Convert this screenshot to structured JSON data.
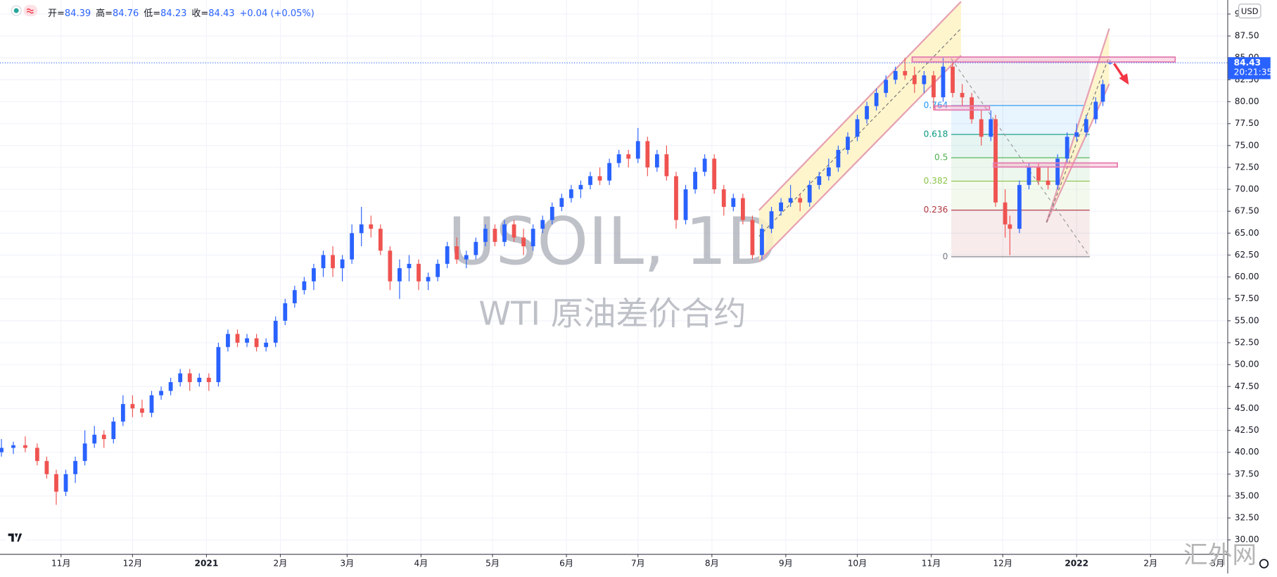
{
  "chart_data": {
    "type": "candlestick",
    "title": "USOIL, 1D",
    "subtitle": "WTI 原油差价合约",
    "legend_labels": [
      "开=",
      "高=",
      "低=",
      "收="
    ],
    "change_label": "+0.04 (+0.05%)",
    "currency": "USD",
    "countdown": "20:21:35",
    "x": [
      -25,
      -20,
      -15,
      -10,
      -6,
      -2,
      2,
      6,
      10,
      14,
      18,
      22,
      26,
      30,
      34,
      38,
      42,
      46,
      50,
      54,
      58,
      62,
      66,
      70,
      74,
      78,
      82,
      86,
      90,
      94,
      98,
      102,
      106,
      110,
      114,
      118,
      122,
      126,
      130,
      134,
      138,
      142,
      146,
      150,
      154,
      158,
      162,
      166,
      170,
      174,
      178,
      182,
      186,
      190,
      194,
      198,
      202,
      206,
      210,
      214,
      218,
      222,
      226,
      230,
      234,
      238,
      242,
      246,
      250,
      254,
      258,
      262,
      266,
      270,
      274,
      278,
      282,
      286,
      290,
      294,
      298,
      302,
      306,
      310,
      314,
      318,
      322,
      326,
      330,
      334,
      338,
      342,
      346,
      350,
      354,
      358,
      362,
      366,
      370,
      374,
      378,
      382,
      386,
      390,
      392,
      396,
      398,
      402,
      406,
      410,
      414,
      418,
      422,
      426,
      430,
      434,
      437,
      440
    ],
    "open": [
      40.0,
      40.5,
      40.8,
      40.5,
      39.0,
      37.5,
      35.5,
      37.5,
      39.0,
      41.0,
      42.0,
      41.5,
      43.5,
      45.5,
      45.0,
      44.5,
      46.5,
      47.0,
      48.0,
      49.0,
      48.0,
      48.5,
      48.0,
      52.0,
      53.5,
      52.5,
      53.0,
      52.0,
      52.5,
      55.0,
      57.0,
      58.5,
      59.5,
      61.0,
      62.5,
      61.0,
      62.0,
      65.0,
      66.0,
      65.5,
      63.0,
      59.5,
      61.0,
      61.5,
      59.5,
      60.0,
      61.5,
      63.5,
      62.0,
      62.5,
      64.0,
      65.5,
      64.0,
      66.0,
      64.5,
      63.5,
      65.5,
      66.5,
      68.0,
      69.0,
      70.0,
      70.5,
      71.5,
      71.0,
      73.0,
      74.0,
      73.5,
      75.5,
      72.5,
      74.0,
      71.5,
      66.5,
      70.0,
      72.0,
      73.5,
      70.0,
      68.0,
      69.0,
      66.5,
      62.5,
      65.5,
      67.5,
      68.5,
      69.0,
      68.5,
      70.5,
      71.5,
      72.5,
      74.5,
      76.0,
      78.0,
      79.5,
      81.0,
      82.5,
      83.5,
      83.0,
      82.0,
      83.0,
      80.5,
      84.0,
      81.0,
      80.5,
      78.0,
      76.0,
      78.0,
      68.5,
      66.0,
      65.5,
      70.5,
      72.5,
      71.0,
      70.5,
      73.5,
      76.0,
      76.5,
      78.0,
      80.0,
      84.39
    ],
    "high": [
      41.5,
      41.2,
      41.8,
      41.0,
      39.5,
      38.0,
      38.0,
      39.5,
      42.5,
      43.0,
      42.5,
      44.0,
      46.5,
      46.5,
      46.0,
      47.0,
      47.5,
      48.5,
      49.5,
      49.5,
      49.0,
      49.0,
      52.5,
      54.0,
      54.0,
      53.5,
      53.5,
      53.0,
      55.5,
      57.5,
      59.0,
      60.0,
      61.5,
      63.0,
      63.5,
      62.5,
      66.0,
      68.0,
      67.0,
      66.0,
      63.5,
      62.0,
      62.5,
      62.0,
      60.5,
      62.0,
      64.0,
      64.5,
      63.0,
      64.5,
      66.0,
      66.0,
      66.5,
      66.5,
      65.5,
      66.0,
      67.0,
      68.5,
      69.5,
      70.5,
      71.0,
      72.0,
      72.5,
      73.5,
      74.5,
      74.5,
      77.0,
      76.0,
      74.5,
      75.0,
      72.0,
      70.5,
      72.5,
      74.0,
      74.0,
      70.5,
      69.5,
      69.5,
      67.0,
      66.0,
      68.0,
      69.0,
      70.5,
      69.5,
      71.0,
      72.0,
      73.5,
      75.0,
      76.5,
      78.5,
      80.0,
      81.5,
      83.0,
      84.0,
      85.0,
      84.0,
      83.5,
      83.5,
      85.0,
      84.5,
      82.0,
      81.0,
      79.0,
      79.0,
      78.5,
      70.0,
      67.0,
      71.0,
      73.0,
      73.0,
      72.5,
      74.0,
      76.5,
      77.5,
      78.5,
      80.5,
      82.5,
      84.76
    ],
    "low": [
      39.5,
      39.8,
      40.0,
      38.5,
      37.0,
      34.0,
      35.0,
      36.5,
      38.5,
      40.5,
      40.5,
      41.0,
      43.0,
      44.0,
      44.0,
      44.0,
      46.0,
      46.5,
      47.5,
      47.0,
      47.5,
      47.0,
      47.5,
      51.5,
      52.0,
      52.0,
      51.5,
      51.5,
      52.0,
      54.5,
      56.5,
      58.0,
      58.5,
      60.0,
      60.0,
      59.5,
      61.5,
      63.5,
      64.5,
      62.5,
      58.5,
      57.5,
      59.5,
      58.5,
      58.5,
      59.5,
      61.0,
      61.5,
      61.0,
      62.0,
      63.5,
      63.5,
      63.5,
      64.0,
      62.5,
      63.0,
      65.0,
      66.0,
      67.5,
      68.5,
      69.0,
      70.0,
      70.5,
      70.5,
      72.5,
      72.5,
      73.0,
      71.5,
      72.0,
      71.0,
      65.5,
      66.0,
      69.5,
      71.5,
      69.5,
      67.0,
      67.5,
      66.0,
      62.0,
      62.0,
      65.0,
      67.0,
      68.0,
      67.5,
      68.0,
      70.0,
      71.0,
      72.0,
      74.0,
      75.5,
      77.5,
      79.0,
      80.5,
      82.0,
      82.5,
      81.0,
      81.0,
      79.0,
      80.0,
      80.5,
      79.5,
      77.5,
      75.0,
      75.5,
      68.0,
      64.5,
      62.5,
      65.0,
      70.0,
      70.5,
      70.0,
      70.0,
      73.0,
      75.5,
      76.0,
      77.5,
      79.5,
      84.23
    ],
    "close": [
      40.5,
      40.8,
      40.5,
      39.0,
      37.5,
      35.5,
      37.5,
      39.0,
      41.0,
      42.0,
      41.5,
      43.5,
      45.5,
      45.0,
      44.5,
      46.5,
      47.0,
      48.0,
      49.0,
      48.0,
      48.5,
      48.0,
      52.0,
      53.5,
      52.5,
      53.0,
      52.0,
      52.5,
      55.0,
      57.0,
      58.5,
      59.5,
      61.0,
      62.5,
      61.0,
      62.0,
      65.0,
      66.0,
      65.5,
      63.0,
      59.5,
      61.0,
      61.5,
      59.5,
      60.0,
      61.5,
      63.5,
      62.0,
      62.5,
      64.0,
      65.5,
      64.0,
      66.0,
      64.5,
      63.5,
      65.5,
      66.5,
      68.0,
      69.0,
      70.0,
      70.5,
      71.5,
      71.0,
      73.0,
      74.0,
      73.5,
      75.5,
      72.5,
      74.0,
      71.5,
      66.5,
      70.0,
      72.0,
      73.5,
      70.0,
      68.0,
      69.0,
      66.5,
      62.5,
      65.5,
      67.5,
      68.5,
      69.0,
      68.5,
      70.5,
      71.5,
      72.5,
      74.5,
      76.0,
      78.0,
      79.5,
      81.0,
      82.5,
      83.5,
      83.0,
      82.0,
      83.0,
      80.5,
      84.0,
      81.0,
      80.5,
      78.0,
      76.0,
      78.0,
      68.5,
      66.0,
      65.5,
      70.5,
      72.5,
      71.0,
      70.5,
      73.5,
      76.0,
      76.5,
      78.0,
      80.0,
      82.0,
      84.43
    ],
    "up_color": "#2962ff",
    "down_color": "#ef5350",
    "xlim": [
      -25.6,
      489.2
    ],
    "xticks": [
      {
        "value": 0,
        "label": "11月"
      },
      {
        "value": 30,
        "label": "12月"
      },
      {
        "value": 61,
        "label": "2021"
      },
      {
        "value": 92,
        "label": "2月"
      },
      {
        "value": 120,
        "label": "3月"
      },
      {
        "value": 151,
        "label": "4月"
      },
      {
        "value": 181,
        "label": "5月"
      },
      {
        "value": 212,
        "label": "6月"
      },
      {
        "value": 242,
        "label": "7月"
      },
      {
        "value": 273,
        "label": "8月"
      },
      {
        "value": 304,
        "label": "9月"
      },
      {
        "value": 334,
        "label": "10月"
      },
      {
        "value": 365,
        "label": "11月"
      },
      {
        "value": 395,
        "label": "12月"
      },
      {
        "value": 426,
        "label": "2022"
      },
      {
        "value": 457,
        "label": "2月"
      },
      {
        "value": 485,
        "label": "3月"
      }
    ],
    "ylim": [
      28.4,
      91.6
    ],
    "yticks": [
      {
        "value": 30,
        "label": "30.00"
      },
      {
        "value": 32.5,
        "label": "32.50"
      },
      {
        "value": 35,
        "label": "35.00"
      },
      {
        "value": 37.5,
        "label": "37.50"
      },
      {
        "value": 40,
        "label": "40.00"
      },
      {
        "value": 42.5,
        "label": "42.50"
      },
      {
        "value": 45,
        "label": "45.00"
      },
      {
        "value": 47.5,
        "label": "47.50"
      },
      {
        "value": 50,
        "label": "50.00"
      },
      {
        "value": 52.5,
        "label": "52.50"
      },
      {
        "value": 55,
        "label": "55.00"
      },
      {
        "value": 57.5,
        "label": "57.50"
      },
      {
        "value": 60,
        "label": "60.00"
      },
      {
        "value": 62.5,
        "label": "62.50"
      },
      {
        "value": 65,
        "label": "65.00"
      },
      {
        "value": 67.5,
        "label": "67.50"
      },
      {
        "value": 70,
        "label": "70.00"
      },
      {
        "value": 72.5,
        "label": "72.50"
      },
      {
        "value": 75,
        "label": "75.00"
      },
      {
        "value": 77.5,
        "label": "77.50"
      },
      {
        "value": 80,
        "label": "80.00"
      },
      {
        "value": 82.5,
        "label": "82.50"
      },
      {
        "value": 85,
        "label": "85.00"
      },
      {
        "value": 87.5,
        "label": "87.50"
      },
      {
        "value": 90,
        "label": "90.00"
      }
    ],
    "grid": true,
    "fib": {
      "from": 62.3,
      "to": 84.9,
      "levels": [
        0,
        0.236,
        0.382,
        0.5,
        0.618,
        0.764
      ],
      "colors": [
        "#787b86",
        "#b2363f",
        "#8bc34a",
        "#4caf50",
        "#089981",
        "#2196f3"
      ]
    }
  },
  "site_watermark": "汇外网"
}
